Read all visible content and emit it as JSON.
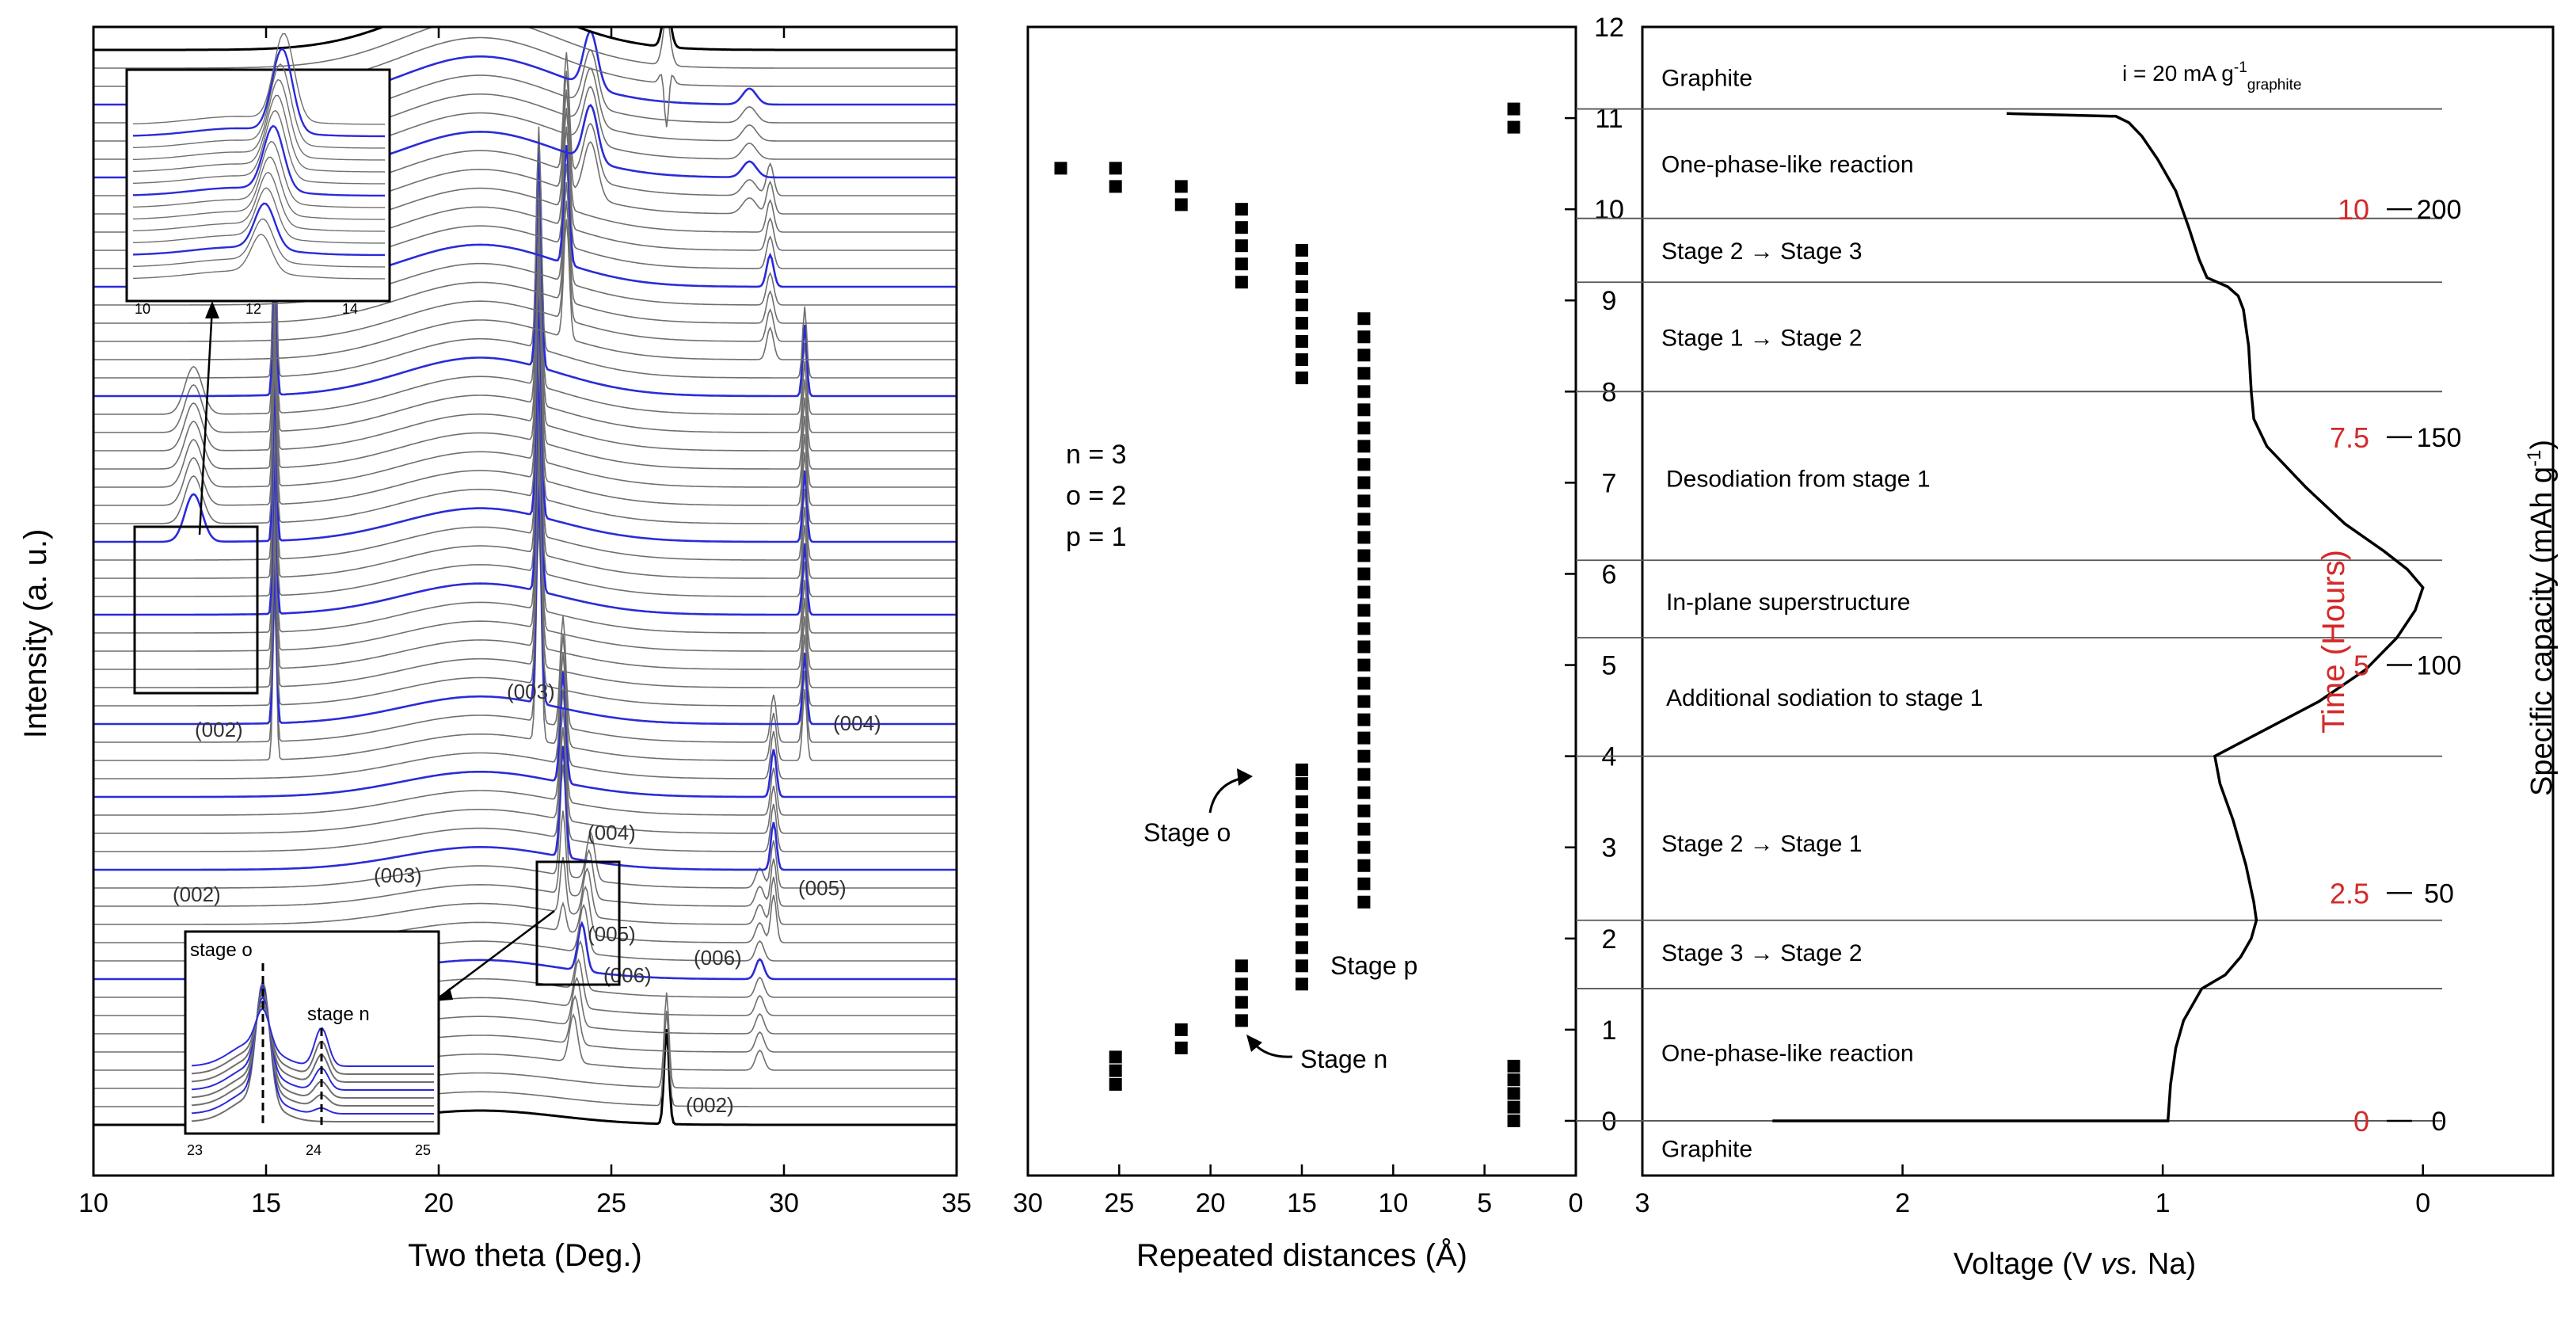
{
  "colors": {
    "axis": "#000000",
    "gray_trace": "#6f6f6f",
    "blue_trace": "#2b2bd8",
    "time_label": "#d42a2a",
    "guide": "#555555"
  },
  "chart_data": [
    {
      "id": "xrd",
      "type": "line",
      "title": "",
      "xlabel": "Two theta (Deg.)",
      "ylabel": "Intensity (a. u.)",
      "xlim": [
        10,
        35
      ],
      "xticks": [
        10,
        15,
        20,
        25,
        30,
        35
      ],
      "xtick_labels": [
        "10",
        "15",
        "20",
        "25",
        "30",
        "35"
      ],
      "series_count": 60,
      "blue_trace_indices": [
        8,
        14,
        18,
        22,
        28,
        32,
        40,
        46,
        52,
        56
      ],
      "annotations": [
        "(002)",
        "(002)",
        "(003)",
        "(004)",
        "(003)",
        "(004)",
        "(005)",
        "(006)",
        "(005)",
        "(006)",
        "(002)"
      ],
      "insets": [
        {
          "name": "low-angle-inset",
          "xticks": [
            "10",
            "12",
            "14"
          ]
        },
        {
          "name": "stage-inset",
          "labels": [
            "stage o",
            "stage n"
          ],
          "xticks": [
            "23",
            "24",
            "25"
          ]
        }
      ]
    },
    {
      "id": "distances",
      "type": "scatter",
      "xlabel": "Repeated distances (Å)",
      "xlim": [
        30,
        0
      ],
      "xticks": [
        30,
        25,
        20,
        15,
        10,
        5,
        0
      ],
      "xtick_labels": [
        "30",
        "25",
        "20",
        "15",
        "10",
        "5",
        "0"
      ],
      "ylim": [
        -0.6,
        12
      ],
      "yticks": [
        0,
        1,
        2,
        3,
        4,
        5,
        6,
        7,
        8,
        9,
        10,
        11,
        12
      ],
      "ytick_labels": [
        "0",
        "1",
        "2",
        "3",
        "4",
        "5",
        "6",
        "7",
        "8",
        "9",
        "10",
        "11",
        "12"
      ],
      "legend_text": [
        "n = 3",
        "o = 2",
        "p = 1"
      ],
      "annotations": [
        "Stage o",
        "Stage p",
        "Stage n"
      ],
      "columns": [
        {
          "d": 28.2,
          "y": [
            10.45
          ]
        },
        {
          "d": 25.2,
          "y": [
            0.4,
            0.55,
            0.7,
            10.25,
            10.45
          ]
        },
        {
          "d": 21.6,
          "y": [
            0.8,
            1.0,
            10.05,
            10.25
          ]
        },
        {
          "d": 18.3,
          "y": [
            1.1,
            1.3,
            1.5,
            1.7,
            9.2,
            9.4,
            9.6,
            9.8,
            10.0
          ]
        },
        {
          "d": 15.0,
          "y": [
            1.5,
            1.7,
            1.9,
            2.1,
            2.3,
            2.5,
            2.7,
            2.9,
            3.1,
            3.3,
            3.5,
            3.7,
            3.85,
            8.15,
            8.35,
            8.55,
            8.75,
            8.95,
            9.15,
            9.35,
            9.55
          ]
        },
        {
          "d": 11.6,
          "y": [
            2.4,
            2.6,
            2.8,
            3.0,
            3.2,
            3.4,
            3.6,
            3.8,
            4.0,
            4.2,
            4.4,
            4.6,
            4.8,
            5.0,
            5.2,
            5.4,
            5.6,
            5.8,
            6.0,
            6.2,
            6.4,
            6.6,
            6.8,
            7.0,
            7.2,
            7.4,
            7.6,
            7.8,
            8.0,
            8.2,
            8.4,
            8.6,
            8.8
          ]
        },
        {
          "d": 3.4,
          "y": [
            0.0,
            0.15,
            0.3,
            0.45,
            0.6,
            10.9,
            11.1
          ]
        }
      ]
    },
    {
      "id": "voltage",
      "type": "line",
      "xlabel_parts": [
        "Voltage (",
        "V ",
        "vs.",
        " Na)"
      ],
      "xlim": [
        3,
        -0.5
      ],
      "xticks": [
        3,
        2,
        1,
        0
      ],
      "xtick_labels": [
        "3",
        "2",
        "1",
        "0"
      ],
      "ylim": [
        -0.6,
        12
      ],
      "note": "i = 20 mA g",
      "note_sup": "-1",
      "note_sub": "graphite",
      "curve": [
        [
          2.5,
          0.0
        ],
        [
          0.98,
          0.0
        ],
        [
          0.97,
          0.4
        ],
        [
          0.95,
          0.8
        ],
        [
          0.92,
          1.1
        ],
        [
          0.88,
          1.3
        ],
        [
          0.85,
          1.45
        ],
        [
          0.76,
          1.6
        ],
        [
          0.7,
          1.8
        ],
        [
          0.66,
          2.0
        ],
        [
          0.64,
          2.2
        ],
        [
          0.65,
          2.4
        ],
        [
          0.68,
          2.8
        ],
        [
          0.73,
          3.3
        ],
        [
          0.78,
          3.7
        ],
        [
          0.8,
          4.0
        ],
        [
          0.6,
          4.3
        ],
        [
          0.4,
          4.6
        ],
        [
          0.22,
          4.95
        ],
        [
          0.1,
          5.3
        ],
        [
          0.03,
          5.6
        ],
        [
          0.0,
          5.85
        ],
        [
          0.06,
          6.05
        ],
        [
          0.15,
          6.25
        ],
        [
          0.3,
          6.55
        ],
        [
          0.45,
          6.95
        ],
        [
          0.6,
          7.4
        ],
        [
          0.65,
          7.7
        ],
        [
          0.66,
          8.0
        ],
        [
          0.67,
          8.5
        ],
        [
          0.69,
          8.9
        ],
        [
          0.71,
          9.05
        ],
        [
          0.75,
          9.15
        ],
        [
          0.83,
          9.25
        ],
        [
          0.86,
          9.45
        ],
        [
          0.9,
          9.8
        ],
        [
          0.95,
          10.2
        ],
        [
          1.02,
          10.55
        ],
        [
          1.08,
          10.8
        ],
        [
          1.13,
          10.95
        ],
        [
          1.18,
          11.02
        ],
        [
          1.6,
          11.05
        ]
      ],
      "region_labels": [
        {
          "text": "Graphite",
          "y": 11.45
        },
        {
          "text": "One-phase-like reaction",
          "y": 10.5
        },
        {
          "text": "Stage 2 → Stage 3",
          "y": 9.55
        },
        {
          "text": "Stage 1 → Stage 2",
          "y": 8.6
        },
        {
          "text": "Desodiation from stage 1",
          "y": 7.05
        },
        {
          "text": "In-plane superstructure",
          "y": 5.7
        },
        {
          "text": "Additional sodiation to stage 1",
          "y": 4.65
        },
        {
          "text": "Stage 2 → Stage 1",
          "y": 3.05
        },
        {
          "text": "Stage 3 → Stage 2",
          "y": 1.85
        },
        {
          "text": "One-phase-like reaction",
          "y": 0.75
        },
        {
          "text": "Graphite",
          "y": -0.3
        }
      ],
      "guide_lines_y": [
        11.1,
        9.9,
        9.2,
        8.0,
        6.15,
        5.3,
        4.0,
        2.2,
        1.45,
        0.0
      ],
      "time_axis": {
        "label": "Time (Hours)",
        "ticks": [
          0,
          2.5,
          5,
          7.5,
          10
        ],
        "tick_labels": [
          "0",
          "2.5",
          "5",
          "7.5",
          "10"
        ]
      },
      "capacity_axis": {
        "label": "Specific capacity (mAh g",
        "label_sup": "-1",
        "label_end": ")",
        "ticks": [
          0,
          50,
          100,
          150,
          200
        ],
        "tick_labels": [
          "0",
          "50",
          "100",
          "150",
          "200"
        ]
      }
    }
  ]
}
